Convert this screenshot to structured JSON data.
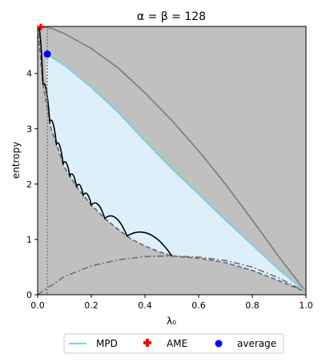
{
  "chart_data": {
    "type": "line",
    "title": "α = β = 128",
    "xlabel": "λ₀",
    "ylabel": "entropy",
    "xlim": [
      0,
      1
    ],
    "ylim": [
      0,
      4.85
    ],
    "xticks": [
      "0.0",
      "0.2",
      "0.4",
      "0.6",
      "0.8",
      "1.0"
    ],
    "yticks": [
      "0",
      "1",
      "2",
      "3",
      "4"
    ],
    "grid": false,
    "legend_position": "bottom",
    "colors": {
      "plot_bg": "#c0c0c0",
      "mpd_fill": "#dceffa",
      "mpd_line": "#7ecfe0",
      "upper_curve": "#808080",
      "lower_dashed": "#707070",
      "black_curve": "#000000",
      "ame_marker": "#ff0000",
      "average_marker": "#0000ff",
      "vline": "#808080"
    },
    "series": [
      {
        "name": "MPD",
        "style": "line",
        "color": "#7ecfe0",
        "x": [
          0.03,
          0.05,
          0.1,
          0.2,
          0.3,
          0.4,
          0.5,
          0.6,
          0.7,
          0.8,
          0.9,
          1.0
        ],
        "y": [
          4.35,
          4.3,
          4.15,
          3.75,
          3.3,
          2.78,
          2.28,
          1.82,
          1.35,
          0.9,
          0.45,
          0.05
        ]
      },
      {
        "name": "AME",
        "style": "marker-plus",
        "color": "#ff0000",
        "x": [
          0.012
        ],
        "y": [
          4.84
        ]
      },
      {
        "name": "average",
        "style": "marker-circle",
        "color": "#0000ff",
        "x": [
          0.036
        ],
        "y": [
          4.35
        ]
      }
    ],
    "extra_curves": {
      "upper_solid": {
        "x": [
          0.0,
          0.05,
          0.1,
          0.2,
          0.3,
          0.4,
          0.5,
          0.6,
          0.7,
          0.8,
          0.9,
          1.0
        ],
        "y": [
          4.85,
          4.82,
          4.72,
          4.45,
          4.1,
          3.65,
          3.15,
          2.6,
          2.0,
          1.35,
          0.68,
          0.05
        ]
      },
      "lower_dashed": {
        "x": [
          0.0,
          0.02,
          0.05,
          0.1,
          0.15,
          0.2,
          0.25,
          0.3,
          0.35,
          0.4,
          0.45,
          0.5,
          0.6,
          0.7,
          0.8,
          0.9,
          1.0
        ],
        "y": [
          4.85,
          3.8,
          3.0,
          2.3,
          1.92,
          1.62,
          1.38,
          1.18,
          1.0,
          0.88,
          0.78,
          0.7,
          0.66,
          0.58,
          0.44,
          0.25,
          0.05
        ]
      },
      "lower_dashdot": {
        "x": [
          0.0,
          0.1,
          0.2,
          0.3,
          0.4,
          0.5,
          0.6,
          0.7,
          0.8,
          0.9,
          1.0
        ],
        "y": [
          0.0,
          0.33,
          0.52,
          0.63,
          0.69,
          0.7,
          0.68,
          0.62,
          0.5,
          0.3,
          0.05
        ]
      },
      "vline_x": 0.036
    }
  }
}
